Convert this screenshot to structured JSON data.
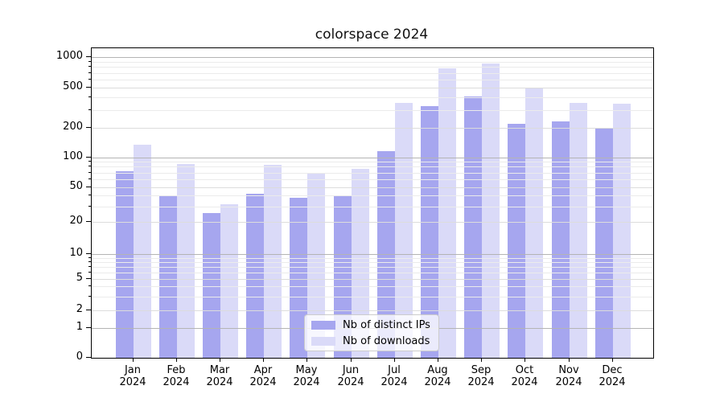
{
  "title": "colorspace 2024",
  "chart_data": {
    "type": "bar",
    "title": "colorspace 2024",
    "year": "2024",
    "months": [
      "Jan",
      "Feb",
      "Mar",
      "Apr",
      "May",
      "Jun",
      "Jul",
      "Aug",
      "Sep",
      "Oct",
      "Nov",
      "Dec"
    ],
    "categories": [
      "Jan 2024",
      "Feb 2024",
      "Mar 2024",
      "Apr 2024",
      "May 2024",
      "Jun 2024",
      "Jul 2024",
      "Aug 2024",
      "Sep 2024",
      "Oct 2024",
      "Nov 2024",
      "Dec 2024"
    ],
    "series": [
      {
        "name": "Nb of distinct IPs",
        "color": "#a6a6ef",
        "values": [
          72,
          40,
          25,
          42,
          38,
          40,
          115,
          330,
          410,
          220,
          230,
          200
        ]
      },
      {
        "name": "Nb of downloads",
        "color": "#dadaf8",
        "values": [
          133,
          85,
          32,
          83,
          68,
          76,
          355,
          770,
          870,
          500,
          350,
          345
        ]
      }
    ],
    "yticks": [
      0,
      1,
      2,
      5,
      10,
      20,
      50,
      100,
      200,
      500,
      1000
    ],
    "ylim": [
      0,
      1000
    ],
    "yscale": "log-like",
    "grid": "horizontal major and minor, drawn over bars",
    "legend_position": "lower center",
    "xlabel": "",
    "ylabel": ""
  }
}
